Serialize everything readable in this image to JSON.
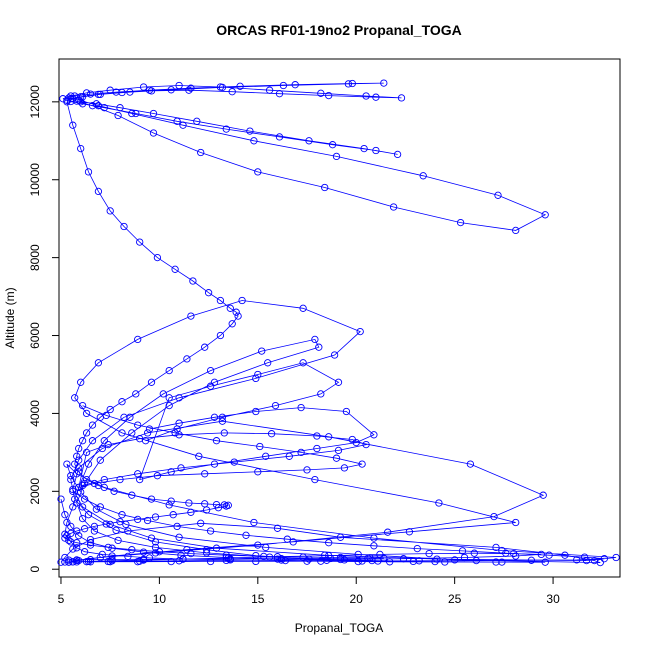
{
  "chart_data": {
    "type": "line",
    "title": "ORCAS RF01-19no2 Propanal_TOGA",
    "xlabel": "Propanal_TOGA",
    "ylabel": "Altitude (m)",
    "xlim": [
      4.9,
      33.4
    ],
    "ylim": [
      -200,
      13100
    ],
    "x_ticks": [
      5,
      10,
      15,
      20,
      25,
      30
    ],
    "y_ticks": [
      0,
      2000,
      4000,
      6000,
      8000,
      10000,
      12000
    ],
    "grid": false,
    "marker": "open-circle",
    "line_color": "#0000ff",
    "series": [
      {
        "x": [
          5.0,
          5.2,
          5.6,
          6.5,
          8.4,
          12.1,
          16.0,
          19.2,
          27.1,
          30.6,
          32.1,
          32.4,
          25.0,
          20.1,
          15.4,
          11.0,
          8.3,
          6.8,
          6.0,
          5.5,
          5.3,
          5.8,
          7.2,
          10.5,
          14.8,
          20.9,
          27.4,
          33.2,
          31.7,
          24.1,
          18.4,
          12.9,
          9.6,
          7.5,
          6.1,
          5.6,
          5.9,
          7.1,
          9.4,
          13.2,
          18.6,
          25.8,
          29.5,
          27.0,
          21.6,
          15.0,
          9.8,
          7.0,
          5.9,
          5.4,
          5.8,
          7.6,
          11.4,
          16.8,
          22.7,
          28.1,
          24.2,
          17.9,
          12.0,
          8.1,
          6.3,
          5.7,
          6.0,
          6.9,
          8.9,
          11.6,
          14.2,
          17.3,
          20.2,
          18.9,
          14.9,
          11.0,
          8.2,
          6.6,
          5.9,
          5.5,
          5.7,
          6.4,
          7.8,
          9.8,
          12.4,
          14.9,
          17.6,
          20.8,
          22.9,
          19.4,
          15.6,
          12.4,
          9.8,
          7.9,
          6.7,
          6.1,
          5.8,
          6.2,
          7.0,
          8.6,
          10.5,
          12.8,
          15.5,
          18.1,
          17.9,
          15.2,
          12.6,
          10.2,
          8.5,
          7.2,
          6.4,
          5.9,
          5.6,
          5.3,
          5.2,
          5.5,
          5.8,
          6.2,
          7.1,
          8.4,
          9.5,
          11.2,
          13.6,
          16.4,
          18.2,
          20.1,
          21.7,
          24.5,
          27.4,
          29.6,
          27.1,
          24.0,
          21.1,
          18.5,
          16.0,
          13.4,
          11.1,
          9.2,
          7.6,
          6.5,
          5.9,
          5.5,
          5.2,
          5.0
        ],
        "y": [
          180,
          300,
          520,
          760,
          980,
          1180,
          1050,
          820,
          560,
          360,
          220,
          170,
          240,
          380,
          560,
          820,
          1150,
          1540,
          1980,
          2400,
          2700,
          2450,
          2100,
          1650,
          1200,
          800,
          480,
          300,
          220,
          260,
          360,
          540,
          800,
          1150,
          1600,
          2050,
          2600,
          3100,
          3500,
          3800,
          3400,
          2700,
          1900,
          1350,
          950,
          620,
          420,
          300,
          220,
          180,
          230,
          340,
          500,
          700,
          960,
          1200,
          1700,
          2300,
          2900,
          3500,
          4000,
          4400,
          4800,
          5300,
          5900,
          6500,
          6900,
          6700,
          6100,
          5500,
          4900,
          4400,
          3900,
          3300,
          2800,
          2300,
          1800,
          1400,
          1000,
          700,
          500,
          350,
          260,
          220,
          200,
          240,
          310,
          420,
          560,
          740,
          980,
          1300,
          1700,
          2200,
          2800,
          3500,
          4200,
          4800,
          5300,
          5700,
          5900,
          5600,
          5100,
          4500,
          3900,
          3300,
          2700,
          2100,
          1600,
          1200,
          900,
          700,
          550,
          450,
          380,
          330,
          290,
          260,
          240,
          220,
          205,
          195,
          190,
          185,
          182,
          180,
          185,
          195,
          210,
          230,
          260,
          300,
          360,
          440,
          540,
          680,
          860,
          1100,
          1400,
          1800
        ]
      },
      {
        "x": [
          5.1,
          5.5,
          6.3,
          7.5,
          9.2,
          11.0,
          13.1,
          15.6,
          18.2,
          20.5,
          22.3,
          21.0,
          18.6,
          16.1,
          13.7,
          11.5,
          9.6,
          8.1,
          6.9,
          6.0,
          5.5,
          5.8,
          6.6,
          7.9,
          9.7,
          12.1,
          15.0,
          18.4,
          21.9,
          25.3,
          28.1,
          29.6,
          27.2,
          23.4,
          19.0,
          14.8,
          11.2,
          8.6,
          6.9,
          5.9,
          5.4,
          5.7,
          6.5,
          7.8,
          9.5,
          11.6,
          14.1,
          16.9,
          19.8,
          21.4,
          19.6,
          16.3,
          13.2,
          10.6,
          8.5,
          7.0,
          6.1,
          5.6,
          5.3,
          5.5,
          6.1,
          7.2,
          8.8,
          10.9,
          13.4,
          16.1,
          18.8,
          21.0,
          22.1,
          20.4,
          17.6,
          14.6,
          11.9,
          9.7,
          8.0,
          6.8,
          6.0
        ],
        "y": [
          12080,
          12150,
          12230,
          12300,
          12380,
          12420,
          12380,
          12300,
          12220,
          12150,
          12100,
          12120,
          12160,
          12210,
          12260,
          12300,
          12280,
          12240,
          12190,
          12130,
          12080,
          12020,
          11900,
          11650,
          11200,
          10700,
          10200,
          9800,
          9300,
          8900,
          8700,
          9100,
          9600,
          10100,
          10600,
          11000,
          11400,
          11700,
          11900,
          12050,
          12100,
          12150,
          12200,
          12250,
          12300,
          12350,
          12400,
          12440,
          12470,
          12480,
          12460,
          12420,
          12370,
          12310,
          12250,
          12190,
          12130,
          12080,
          12040,
          12010,
          11950,
          11850,
          11700,
          11500,
          11300,
          11100,
          10900,
          10750,
          10650,
          10800,
          11000,
          11250,
          11500,
          11700,
          11850,
          11950,
          12000
        ]
      },
      {
        "x": [
          5.3,
          5.6,
          6.0,
          6.4,
          6.9,
          7.5,
          8.2,
          9.0,
          9.9,
          10.8,
          11.7,
          12.5,
          13.1,
          13.6,
          13.9,
          14.0,
          13.7,
          13.1,
          12.3,
          11.4,
          10.5,
          9.6,
          8.8,
          8.1,
          7.5,
          7.0,
          6.6,
          6.3,
          6.1,
          5.9,
          5.8,
          5.7,
          5.9,
          6.3,
          6.9,
          7.7,
          8.6,
          9.6,
          10.6,
          11.5,
          12.3,
          12.9,
          13.3,
          13.5,
          13.4,
          13.0,
          12.4,
          11.6,
          10.7,
          9.8,
          8.9,
          8.0,
          7.3,
          6.7,
          6.2,
          5.8,
          5.5,
          5.3,
          5.2,
          5.4,
          5.8,
          6.5,
          7.4,
          8.6,
          10.0,
          11.6,
          13.4,
          15.3,
          17.3,
          19.2,
          20.7,
          21.4,
          20.6,
          18.7,
          16.2,
          13.6,
          11.2,
          9.2,
          7.6,
          6.5,
          5.8,
          5.4
        ],
        "y": [
          12000,
          11400,
          10800,
          10200,
          9700,
          9200,
          8800,
          8400,
          8000,
          7700,
          7400,
          7100,
          6900,
          6700,
          6600,
          6500,
          6300,
          6000,
          5700,
          5400,
          5100,
          4800,
          4500,
          4300,
          4100,
          3900,
          3700,
          3500,
          3300,
          3100,
          2900,
          2700,
          2500,
          2300,
          2150,
          2000,
          1900,
          1800,
          1750,
          1700,
          1680,
          1660,
          1650,
          1640,
          1620,
          1580,
          1520,
          1460,
          1400,
          1340,
          1280,
          1220,
          1160,
          1100,
          1040,
          980,
          920,
          860,
          800,
          740,
          680,
          620,
          560,
          500,
          450,
          400,
          360,
          330,
          310,
          300,
          290,
          285,
          280,
          275,
          270,
          265,
          260,
          255,
          250,
          245,
          240,
          235
        ]
      },
      {
        "x": [
          5.6,
          6.2,
          7.0,
          8.1,
          9.4,
          10.9,
          12.6,
          14.4,
          16.5,
          18.6,
          20.9,
          23.1,
          25.4,
          27.6,
          29.8,
          31.6,
          32.6,
          31.2,
          28.9,
          26.1,
          23.2,
          20.3,
          17.5,
          14.9,
          12.6,
          10.6,
          8.9,
          7.5,
          6.5,
          5.8,
          5.4,
          5.2,
          5.6,
          6.4,
          7.6,
          9.2,
          11.2,
          13.5,
          16.0,
          18.6,
          21.2,
          23.7,
          26.0,
          28.0,
          29.4,
          28.1,
          25.5,
          22.4,
          19.2,
          16.2,
          13.4,
          11.0,
          9.0,
          7.4,
          6.3,
          5.6
        ],
        "y": [
          2000,
          1800,
          1600,
          1400,
          1250,
          1100,
          980,
          870,
          770,
          680,
          600,
          530,
          470,
          410,
          360,
          310,
          270,
          240,
          230,
          220,
          215,
          210,
          205,
          200,
          198,
          196,
          194,
          192,
          190,
          188,
          186,
          185,
          190,
          200,
          215,
          235,
          260,
          290,
          320,
          350,
          380,
          400,
          410,
          400,
          380,
          340,
          300,
          270,
          250,
          235,
          225,
          215,
          205,
          198,
          192,
          188
        ]
      },
      {
        "x": [
          6.1,
          7.3,
          8.9,
          10.8,
          12.9,
          15.1,
          17.2,
          19.0,
          20.3,
          19.4,
          17.5,
          15.0,
          12.3,
          9.9,
          8.0,
          6.7,
          5.9,
          6.3,
          7.4,
          9.0,
          11.0,
          13.3,
          15.7,
          18.0,
          19.8,
          20.5,
          19.1,
          16.6,
          13.8,
          11.1,
          8.9,
          7.2,
          6.1
        ],
        "y": [
          4200,
          3950,
          3700,
          3500,
          3300,
          3150,
          3000,
          2850,
          2700,
          2600,
          2550,
          2500,
          2450,
          2400,
          2300,
          2200,
          2100,
          3000,
          3200,
          3350,
          3450,
          3500,
          3480,
          3420,
          3330,
          3200,
          3050,
          2900,
          2750,
          2600,
          2450,
          2300,
          2150
        ]
      },
      {
        "x": [
          9.5,
          11.0,
          12.8,
          14.9,
          17.2,
          19.5,
          20.9,
          20.0,
          18.0,
          15.4,
          12.8,
          10.6,
          9.0,
          10.5,
          12.6,
          15.0,
          17.3,
          19.1,
          18.2,
          15.9,
          13.2,
          10.9,
          9.3
        ],
        "y": [
          3600,
          3750,
          3900,
          4050,
          4150,
          4050,
          3450,
          3250,
          3100,
          2900,
          2700,
          2500,
          2300,
          4400,
          4700,
          5000,
          5300,
          4800,
          4500,
          4200,
          3900,
          3600,
          3300
        ]
      }
    ]
  }
}
